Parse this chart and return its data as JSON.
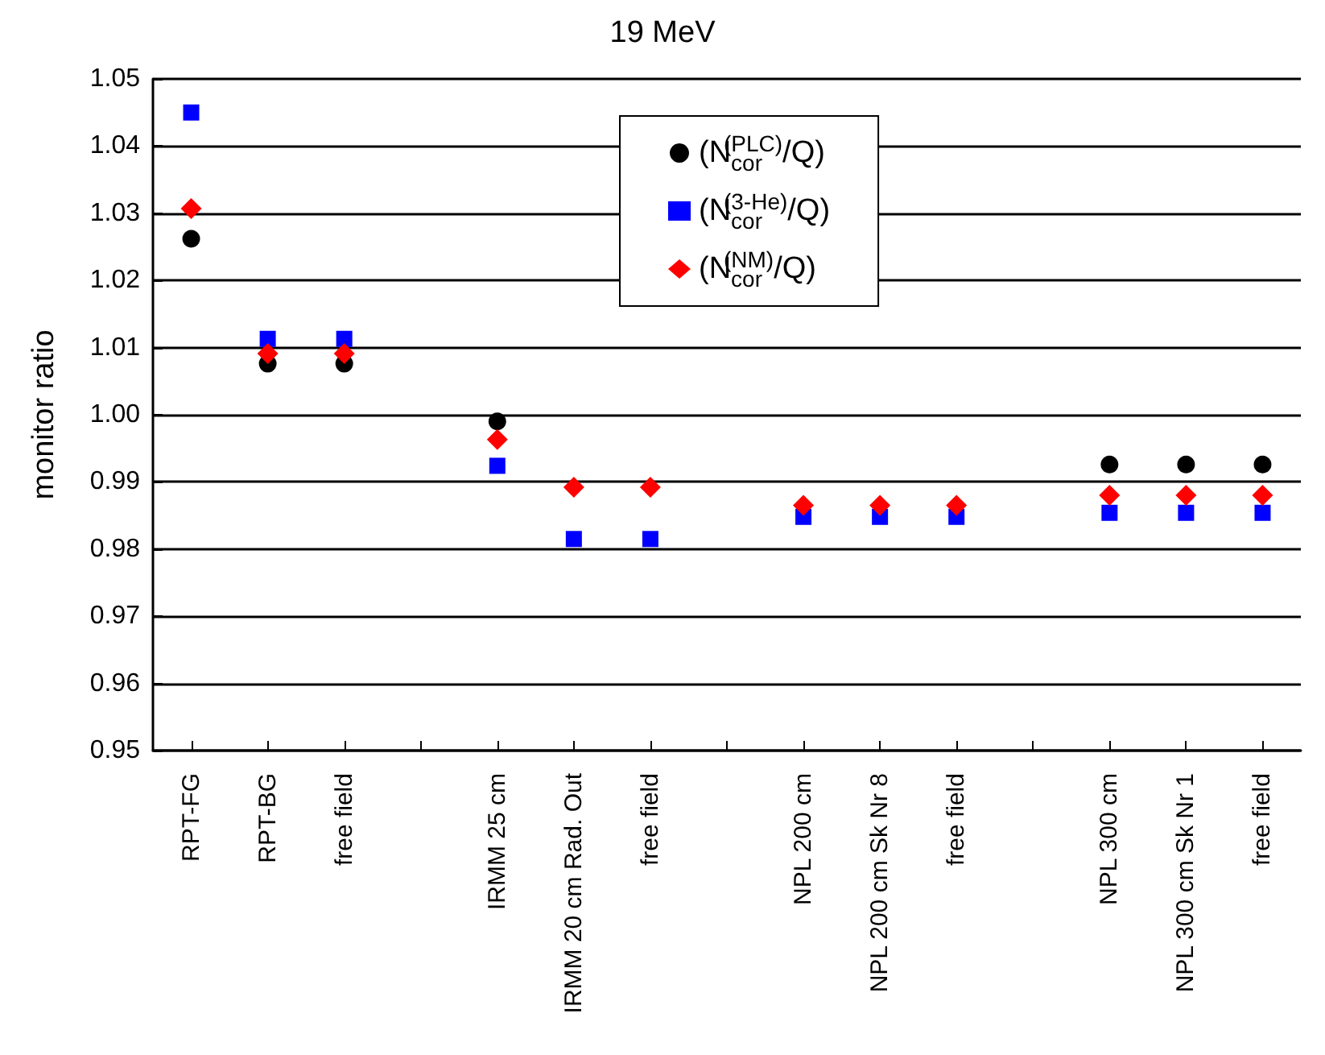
{
  "chart_data": {
    "type": "scatter",
    "title": "19 MeV",
    "ylabel": "monitor ratio",
    "categories": [
      "RPT-FG",
      "RPT-BG",
      "free field",
      null,
      "IRMM 25 cm",
      "IRMM 20 cm Rad. Out",
      "free field",
      null,
      "NPL 200 cm",
      "NPL 200 cm Sk Nr 8",
      "free field",
      null,
      "NPL 300 cm",
      "NPL 300 cm Sk Nr 1",
      "free field"
    ],
    "series": [
      {
        "name": "(N$_{cor}$$^{(PLC)}$/Q)",
        "color": "#000000",
        "marker": "circle",
        "values": [
          1.0262,
          1.0076,
          1.0076,
          null,
          0.999,
          null,
          null,
          null,
          null,
          null,
          null,
          null,
          0.9926,
          0.9926,
          0.9926
        ]
      },
      {
        "name": "(N$_{cor}$$^{(3-He)}$/Q)",
        "color": "#0000ff",
        "marker": "square",
        "values": [
          1.045,
          1.0113,
          1.0113,
          null,
          0.9924,
          0.9815,
          0.9815,
          null,
          0.9848,
          0.9848,
          0.9848,
          null,
          0.9854,
          0.9854,
          0.9854
        ]
      },
      {
        "name": "(N$_{cor}$$^{(NM)}$/Q)",
        "color": "#ff0000",
        "marker": "diamond",
        "values": [
          1.0307,
          1.0091,
          1.0091,
          null,
          0.9963,
          0.9892,
          0.9892,
          null,
          0.9865,
          0.9865,
          0.9865,
          null,
          0.988,
          0.988,
          0.988
        ]
      }
    ],
    "ylim": [
      0.95,
      1.05
    ],
    "yticks": [
      0.95,
      0.96,
      0.97,
      0.98,
      0.99,
      {
        "value": 1,
        "label": "1.00"
      },
      1.01,
      1.02,
      1.03,
      1.04,
      1.05
    ],
    "grid": "y",
    "legend": "top"
  }
}
